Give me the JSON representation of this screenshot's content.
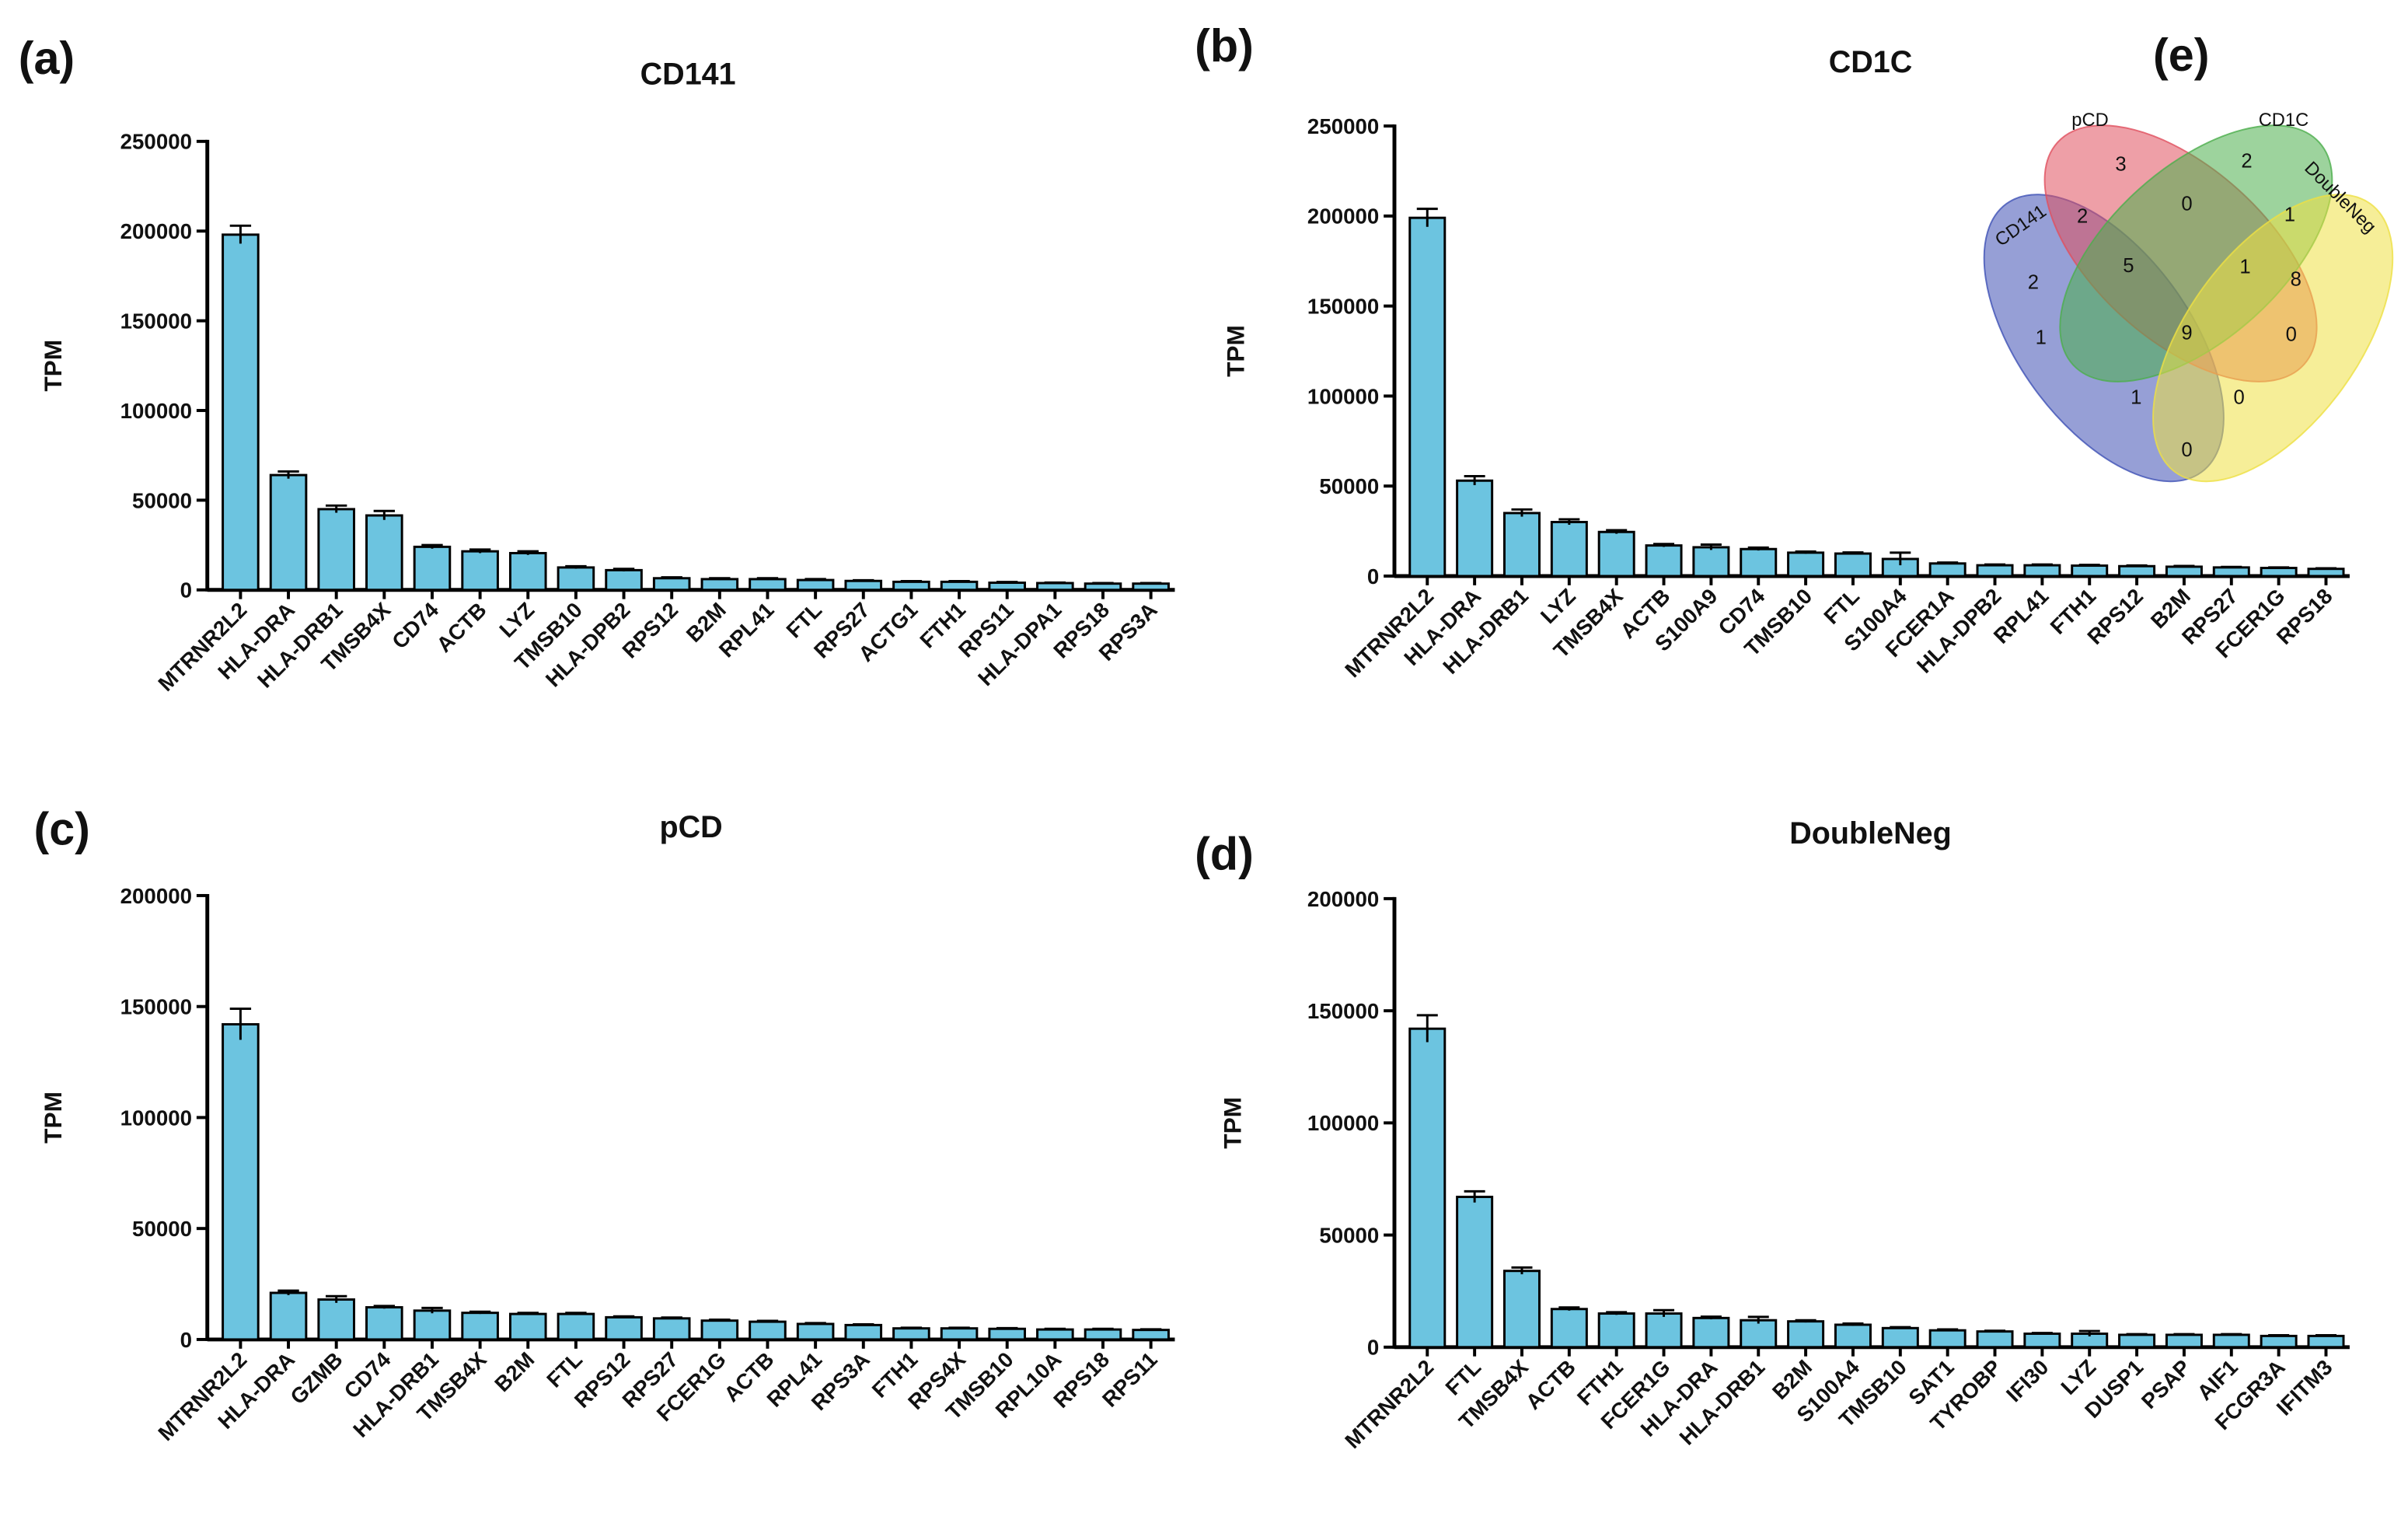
{
  "chart_data": [
    {
      "type": "bar",
      "panel_label": "(a)",
      "title": "CD141",
      "ylabel": "TPM",
      "color": "#6cc4e0",
      "categories": [
        "MTRNR2L2",
        "HLA-DRA",
        "HLA-DRB1",
        "TMSB4X",
        "CD74",
        "ACTB",
        "LYZ",
        "TMSB10",
        "HLA-DPB2",
        "RPS12",
        "B2M",
        "RPL41",
        "FTL",
        "RPS27",
        "ACTG1",
        "FTH1",
        "RPS11",
        "HLA-DPA1",
        "RPS18",
        "RPS3A"
      ],
      "values": [
        198000,
        64000,
        45000,
        41500,
        24000,
        21500,
        20500,
        12500,
        11000,
        6500,
        6000,
        6000,
        5500,
        5000,
        4500,
        4500,
        4000,
        3800,
        3500,
        3500
      ],
      "errors": [
        5000,
        2000,
        2000,
        2500,
        1000,
        1000,
        1000,
        700,
        700,
        500,
        500,
        500,
        500,
        400,
        400,
        400,
        400,
        300,
        300,
        300
      ],
      "ylim": [
        0,
        250000
      ],
      "yticks": [
        0,
        50000,
        100000,
        150000,
        200000,
        250000
      ]
    },
    {
      "type": "bar",
      "panel_label": "(b)",
      "title": "CD1C",
      "ylabel": "TPM",
      "color": "#6cc4e0",
      "categories": [
        "MTRNR2L2",
        "HLA-DRA",
        "HLA-DRB1",
        "LYZ",
        "TMSB4X",
        "ACTB",
        "S100A9",
        "CD74",
        "TMSB10",
        "FTL",
        "S100A4",
        "FCER1A",
        "HLA-DPB2",
        "RPL41",
        "FTH1",
        "RPS12",
        "B2M",
        "RPS27",
        "FCER1G",
        "RPS18"
      ],
      "values": [
        199000,
        53000,
        35000,
        30000,
        24500,
        17000,
        16000,
        15000,
        13000,
        12500,
        9500,
        7000,
        6000,
        6000,
        5800,
        5500,
        5200,
        4800,
        4500,
        4000
      ],
      "errors": [
        5000,
        2500,
        2000,
        1500,
        1000,
        800,
        1500,
        800,
        600,
        600,
        3500,
        500,
        400,
        400,
        400,
        400,
        400,
        300,
        300,
        300
      ],
      "ylim": [
        0,
        250000
      ],
      "yticks": [
        0,
        50000,
        100000,
        150000,
        200000,
        250000
      ]
    },
    {
      "type": "bar",
      "panel_label": "(c)",
      "title": "pCD",
      "ylabel": "TPM",
      "color": "#6cc4e0",
      "categories": [
        "MTRNR2L2",
        "HLA-DRA",
        "GZMB",
        "CD74",
        "HLA-DRB1",
        "TMSB4X",
        "B2M",
        "FTL",
        "RPS12",
        "RPS27",
        "FCER1G",
        "ACTB",
        "RPL41",
        "RPS3A",
        "FTH1",
        "RPS4X",
        "TMSB10",
        "RPL10A",
        "RPS18",
        "RPS11"
      ],
      "values": [
        142000,
        21000,
        18000,
        14500,
        13000,
        12000,
        11500,
        11500,
        10000,
        9500,
        8500,
        8000,
        7000,
        6500,
        5000,
        5000,
        4800,
        4500,
        4500,
        4300
      ],
      "errors": [
        7000,
        1000,
        1500,
        600,
        1200,
        500,
        500,
        500,
        400,
        400,
        400,
        400,
        400,
        300,
        300,
        300,
        300,
        300,
        300,
        300
      ],
      "ylim": [
        0,
        200000
      ],
      "yticks": [
        0,
        50000,
        100000,
        150000,
        200000
      ]
    },
    {
      "type": "bar",
      "panel_label": "(d)",
      "title": "DoubleNeg",
      "ylabel": "TPM",
      "color": "#6cc4e0",
      "categories": [
        "MTRNR2L2",
        "FTL",
        "TMSB4X",
        "ACTB",
        "FTH1",
        "FCER1G",
        "HLA-DRA",
        "HLA-DRB1",
        "B2M",
        "S100A4",
        "TMSB10",
        "SAT1",
        "TYROBP",
        "IFI30",
        "LYZ",
        "DUSP1",
        "PSAP",
        "AIF1",
        "FCGR3A",
        "IFITM3"
      ],
      "values": [
        142000,
        67000,
        34000,
        17000,
        15000,
        15000,
        13000,
        12000,
        11500,
        10000,
        8500,
        7500,
        7000,
        6000,
        6000,
        5500,
        5500,
        5500,
        5000,
        5000
      ],
      "errors": [
        6000,
        2500,
        1500,
        700,
        600,
        1500,
        600,
        1500,
        500,
        500,
        400,
        400,
        300,
        300,
        1200,
        300,
        300,
        300,
        300,
        300
      ],
      "ylim": [
        0,
        200000
      ],
      "yticks": [
        0,
        50000,
        100000,
        150000,
        200000
      ]
    },
    {
      "type": "venn",
      "panel_label": "(e)",
      "sets": [
        {
          "name": "CD141",
          "color": "#3f51b5"
        },
        {
          "name": "pCD",
          "color": "#e0505f"
        },
        {
          "name": "CD1C",
          "color": "#4cae4c"
        },
        {
          "name": "DoubleNeg",
          "color": "#eee044"
        }
      ],
      "regions": [
        3,
        2,
        2,
        8,
        2,
        0,
        1,
        5,
        1,
        1,
        9,
        0,
        1,
        0,
        0
      ]
    }
  ]
}
